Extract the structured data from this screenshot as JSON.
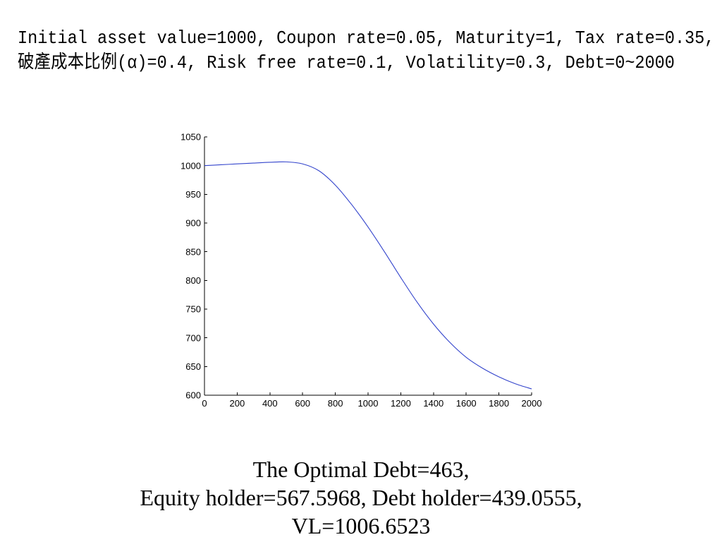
{
  "parameters": {
    "line1": "Initial asset value=1000, Coupon rate=0.05, Maturity=1, Tax rate=0.35,",
    "line2": "破產成本比例(α)=0.4, Risk free rate=0.1, Volatility=0.3, Debt=0~2000"
  },
  "chart_data": {
    "type": "line",
    "xlim": [
      0,
      2000
    ],
    "ylim": [
      600,
      1050
    ],
    "xticks": [
      0,
      200,
      400,
      600,
      800,
      1000,
      1200,
      1400,
      1600,
      1800,
      2000
    ],
    "yticks": [
      600,
      650,
      700,
      750,
      800,
      850,
      900,
      950,
      1000,
      1050
    ],
    "grid": false,
    "legend": false,
    "series": [
      {
        "color": "#3344cc",
        "x": [
          0,
          100,
          200,
          300,
          400,
          500,
          600,
          700,
          800,
          900,
          1000,
          1100,
          1200,
          1300,
          1400,
          1500,
          1600,
          1700,
          1800,
          1900,
          2000
        ],
        "y": [
          1000.0,
          1001.5,
          1003.0,
          1004.4,
          1005.8,
          1006.5,
          1003.0,
          991.0,
          966.0,
          932.0,
          893.0,
          850.0,
          805.0,
          762.0,
          724.0,
          692.0,
          666.0,
          647.0,
          632.0,
          620.0,
          611.0
        ]
      }
    ]
  },
  "results": {
    "optimal_debt": "The Optimal Debt=463,",
    "holders": "Equity holder=567.5968, Debt holder=439.0555,",
    "vl": "VL=1006.6523"
  }
}
